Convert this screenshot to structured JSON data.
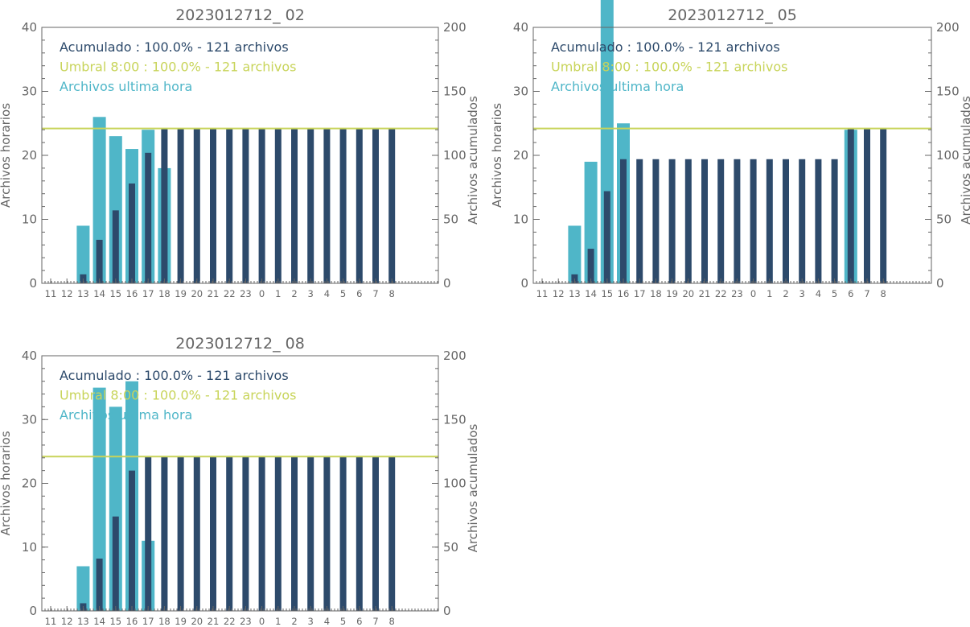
{
  "colors": {
    "accumulated": "#2d4a6b",
    "threshold": "#c8d45a",
    "hourly": "#4fb6c8",
    "axis": "#666666"
  },
  "chart_data": [
    {
      "type": "bar",
      "title": "2023012712_ 02",
      "ylabel_left": "Archivos horarios",
      "ylabel_right": "Archivos acumulados",
      "ylim_left": [
        0,
        40
      ],
      "ylim_right": [
        0,
        200
      ],
      "yticks_left": [
        "0",
        "10",
        "20",
        "30",
        "40"
      ],
      "yticks_right": [
        "0",
        "50",
        "100",
        "150",
        "200"
      ],
      "categories": [
        "11",
        "12",
        "13",
        "14",
        "15",
        "16",
        "17",
        "18",
        "19",
        "20",
        "21",
        "22",
        "23",
        "0",
        "1",
        "2",
        "3",
        "4",
        "5",
        "6",
        "7",
        "8"
      ],
      "threshold_right": 121,
      "legend": [
        "Acumulado : 100.0% - 121 archivos",
        "Umbral 8:00 : 100.0% - 121 archivos",
        "Archivos ultima hora"
      ],
      "series": [
        {
          "name": "Archivos ultima hora",
          "axis": "left",
          "values": [
            0,
            0,
            9,
            26,
            23,
            21,
            24,
            18,
            0,
            0,
            0,
            0,
            0,
            0,
            0,
            0,
            0,
            0,
            0,
            0,
            0,
            0
          ]
        },
        {
          "name": "Acumulado",
          "axis": "right",
          "values": [
            0,
            0,
            7,
            34,
            57,
            78,
            102,
            121,
            121,
            121,
            121,
            121,
            121,
            121,
            121,
            121,
            121,
            121,
            121,
            121,
            121,
            121
          ]
        }
      ]
    },
    {
      "type": "bar",
      "title": "2023012712_ 05",
      "ylabel_left": "Archivos horarios",
      "ylabel_right": "Archivos acumulados",
      "ylim_left": [
        0,
        40
      ],
      "ylim_right": [
        0,
        200
      ],
      "yticks_left": [
        "0",
        "10",
        "20",
        "30",
        "40"
      ],
      "yticks_right": [
        "0",
        "50",
        "100",
        "150",
        "200"
      ],
      "categories": [
        "11",
        "12",
        "13",
        "14",
        "15",
        "16",
        "17",
        "18",
        "19",
        "20",
        "21",
        "22",
        "23",
        "0",
        "1",
        "2",
        "3",
        "4",
        "5",
        "6",
        "7",
        "8"
      ],
      "threshold_right": 121,
      "legend": [
        "Acumulado : 100.0% - 121 archivos",
        "Umbral 8:00 : 100.0% - 121 archivos",
        "Archivos ultima hora"
      ],
      "series": [
        {
          "name": "Archivos ultima hora",
          "axis": "left",
          "values": [
            0,
            0,
            9,
            19,
            45,
            25,
            0,
            0,
            0,
            0,
            0,
            0,
            0,
            0,
            0,
            0,
            0,
            0,
            0,
            24,
            0,
            0
          ]
        },
        {
          "name": "Acumulado",
          "axis": "right",
          "values": [
            0,
            0,
            7,
            27,
            72,
            97,
            97,
            97,
            97,
            97,
            97,
            97,
            97,
            97,
            97,
            97,
            97,
            97,
            97,
            121,
            121,
            121
          ]
        }
      ]
    },
    {
      "type": "bar",
      "title": "2023012712_ 08",
      "ylabel_left": "Archivos horarios",
      "ylabel_right": "Archivos acumulados",
      "ylim_left": [
        0,
        40
      ],
      "ylim_right": [
        0,
        200
      ],
      "yticks_left": [
        "0",
        "10",
        "20",
        "30",
        "40"
      ],
      "yticks_right": [
        "0",
        "50",
        "100",
        "150",
        "200"
      ],
      "categories": [
        "11",
        "12",
        "13",
        "14",
        "15",
        "16",
        "17",
        "18",
        "19",
        "20",
        "21",
        "22",
        "23",
        "0",
        "1",
        "2",
        "3",
        "4",
        "5",
        "6",
        "7",
        "8"
      ],
      "threshold_right": 121,
      "legend": [
        "Acumulado : 100.0% - 121 archivos",
        "Umbral 8:00 : 100.0% - 121 archivos",
        "Archivos ultima hora"
      ],
      "series": [
        {
          "name": "Archivos ultima hora",
          "axis": "left",
          "values": [
            0,
            0,
            7,
            35,
            32,
            36,
            11,
            0,
            0,
            0,
            0,
            0,
            0,
            0,
            0,
            0,
            0,
            0,
            0,
            0,
            0,
            0
          ]
        },
        {
          "name": "Acumulado",
          "axis": "right",
          "values": [
            0,
            0,
            6,
            41,
            74,
            110,
            121,
            121,
            121,
            121,
            121,
            121,
            121,
            121,
            121,
            121,
            121,
            121,
            121,
            121,
            121,
            121
          ]
        }
      ]
    }
  ]
}
